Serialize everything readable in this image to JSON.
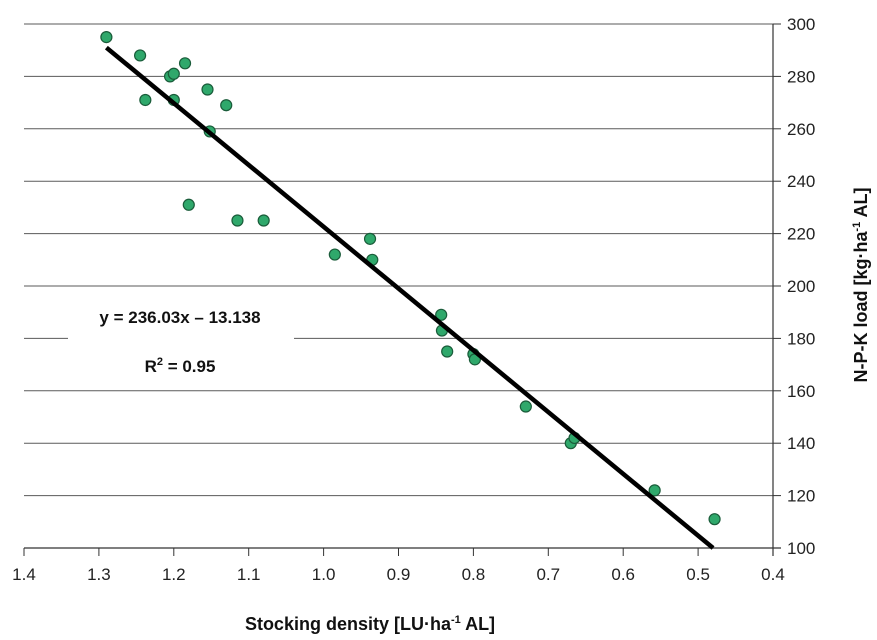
{
  "chart_data": {
    "type": "scatter",
    "xlabel": "Stocking density [LU·ha-1 AL]",
    "xlabel_parts": {
      "pre": "Stocking density [LU·ha",
      "sup": "-1",
      "post": " AL]"
    },
    "ylabel": "N-P-K load [kg·ha-1 AL]",
    "ylabel_parts": {
      "pre": "N-P-K load [kg·ha",
      "sup": "-1",
      "post": " AL]"
    },
    "xlim": [
      1.4,
      0.4
    ],
    "ylim": [
      100,
      300
    ],
    "x_reversed": true,
    "y_axis_side": "right",
    "grid": "horizontal",
    "x_ticks": [
      "1.4",
      "1.3",
      "1.2",
      "1.1",
      "1.0",
      "0.9",
      "0.8",
      "0.7",
      "0.6",
      "0.5",
      "0.4"
    ],
    "y_ticks": [
      "100",
      "120",
      "140",
      "160",
      "180",
      "200",
      "220",
      "240",
      "260",
      "280",
      "300"
    ],
    "points": [
      {
        "x": 1.29,
        "y": 295
      },
      {
        "x": 1.245,
        "y": 288
      },
      {
        "x": 1.185,
        "y": 285
      },
      {
        "x": 1.205,
        "y": 280
      },
      {
        "x": 1.2,
        "y": 281
      },
      {
        "x": 1.155,
        "y": 275
      },
      {
        "x": 1.238,
        "y": 271
      },
      {
        "x": 1.2,
        "y": 271
      },
      {
        "x": 1.13,
        "y": 269
      },
      {
        "x": 1.152,
        "y": 259
      },
      {
        "x": 1.18,
        "y": 231
      },
      {
        "x": 1.115,
        "y": 225
      },
      {
        "x": 1.08,
        "y": 225
      },
      {
        "x": 0.985,
        "y": 212
      },
      {
        "x": 0.938,
        "y": 218
      },
      {
        "x": 0.935,
        "y": 210
      },
      {
        "x": 0.843,
        "y": 189
      },
      {
        "x": 0.842,
        "y": 183
      },
      {
        "x": 0.835,
        "y": 175
      },
      {
        "x": 0.8,
        "y": 174
      },
      {
        "x": 0.798,
        "y": 172
      },
      {
        "x": 0.73,
        "y": 154
      },
      {
        "x": 0.67,
        "y": 140
      },
      {
        "x": 0.665,
        "y": 142
      },
      {
        "x": 0.558,
        "y": 122
      },
      {
        "x": 0.478,
        "y": 111
      }
    ],
    "trendline": {
      "x1": 1.29,
      "y1": 291,
      "x2": 0.48,
      "y2": 100
    },
    "marker_color": "#2fa86b",
    "marker_edge_color": "#1a5c3a",
    "line_color": "#000000",
    "annotations": {
      "equation": "y = 236.03x – 13.138",
      "r2_pre": "R",
      "r2_sup": "2",
      "r2_post": " = 0.95"
    }
  }
}
